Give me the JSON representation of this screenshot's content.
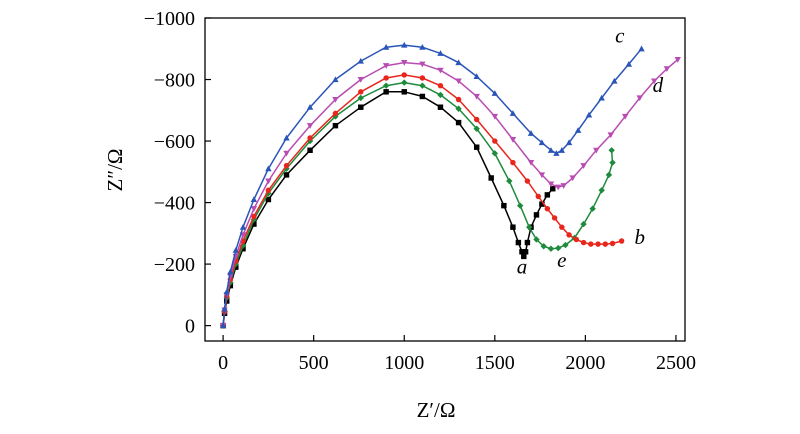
{
  "chart_data": {
    "type": "line",
    "title": "",
    "xlabel": "Z′/Ω",
    "ylabel": "Z″/Ω",
    "xlim": [
      -100,
      2550
    ],
    "ylim": [
      50,
      -1000
    ],
    "xticks": [
      0,
      500,
      1000,
      1500,
      2000,
      2500
    ],
    "yticks": [
      0,
      -200,
      -400,
      -600,
      -800,
      -1000
    ],
    "xtick_labels": [
      "0",
      "500",
      "1000",
      "1500",
      "2000",
      "2500"
    ],
    "ytick_labels": [
      "0",
      "−200",
      "−400",
      "−600",
      "−800",
      "−1000"
    ],
    "grid": false,
    "series": [
      {
        "name": "a",
        "color": "#000000",
        "marker": "square",
        "x": [
          0,
          8,
          20,
          40,
          70,
          110,
          170,
          250,
          350,
          480,
          620,
          760,
          900,
          1000,
          1100,
          1200,
          1300,
          1400,
          1480,
          1550,
          1600,
          1630,
          1650,
          1660,
          1670,
          1680,
          1700,
          1730,
          1760,
          1790,
          1820
        ],
        "y": [
          0,
          -40,
          -80,
          -130,
          -190,
          -250,
          -330,
          -410,
          -490,
          -570,
          -650,
          -710,
          -760,
          -760,
          -745,
          -710,
          -660,
          -580,
          -480,
          -390,
          -320,
          -270,
          -240,
          -225,
          -240,
          -270,
          -320,
          -360,
          -395,
          -425,
          -445
        ]
      },
      {
        "name": "e",
        "color": "#1e8a3c",
        "marker": "diamond",
        "x": [
          0,
          8,
          20,
          40,
          70,
          110,
          170,
          250,
          350,
          480,
          620,
          760,
          900,
          1000,
          1100,
          1200,
          1300,
          1400,
          1500,
          1580,
          1640,
          1690,
          1730,
          1770,
          1810,
          1850,
          1890,
          1940,
          1990,
          2040,
          2090,
          2130,
          2150,
          2145
        ],
        "y": [
          0,
          -45,
          -90,
          -140,
          -200,
          -260,
          -345,
          -430,
          -510,
          -600,
          -680,
          -740,
          -780,
          -790,
          -780,
          -750,
          -705,
          -640,
          -560,
          -470,
          -390,
          -320,
          -280,
          -258,
          -250,
          -252,
          -262,
          -285,
          -330,
          -380,
          -440,
          -490,
          -530,
          -570
        ]
      },
      {
        "name": "b",
        "color": "#e8261c",
        "marker": "circle",
        "x": [
          0,
          8,
          20,
          40,
          70,
          110,
          170,
          250,
          350,
          480,
          620,
          760,
          900,
          1000,
          1100,
          1200,
          1300,
          1400,
          1500,
          1600,
          1680,
          1740,
          1790,
          1830,
          1870,
          1910,
          1950,
          1990,
          2030,
          2070,
          2110,
          2150,
          2200
        ],
        "y": [
          0,
          -45,
          -95,
          -150,
          -210,
          -275,
          -355,
          -440,
          -520,
          -610,
          -690,
          -760,
          -805,
          -815,
          -805,
          -780,
          -735,
          -670,
          -600,
          -530,
          -470,
          -420,
          -380,
          -350,
          -320,
          -295,
          -280,
          -270,
          -265,
          -265,
          -265,
          -267,
          -275
        ]
      },
      {
        "name": "d",
        "color": "#b84cb2",
        "marker": "triangle-down",
        "x": [
          0,
          8,
          20,
          40,
          70,
          110,
          170,
          250,
          350,
          480,
          620,
          760,
          900,
          1000,
          1100,
          1200,
          1300,
          1400,
          1500,
          1600,
          1700,
          1760,
          1810,
          1850,
          1880,
          1930,
          1990,
          2060,
          2140,
          2220,
          2300,
          2380,
          2450,
          2510
        ],
        "y": [
          0,
          -50,
          -100,
          -160,
          -225,
          -295,
          -380,
          -470,
          -560,
          -650,
          -735,
          -800,
          -845,
          -855,
          -850,
          -830,
          -795,
          -745,
          -680,
          -605,
          -530,
          -490,
          -460,
          -450,
          -455,
          -480,
          -520,
          -570,
          -620,
          -680,
          -740,
          -795,
          -835,
          -865
        ]
      },
      {
        "name": "c",
        "color": "#2a55b8",
        "marker": "triangle-up",
        "x": [
          0,
          8,
          20,
          40,
          70,
          110,
          170,
          250,
          350,
          480,
          620,
          760,
          900,
          1000,
          1100,
          1200,
          1300,
          1400,
          1500,
          1600,
          1700,
          1760,
          1810,
          1840,
          1870,
          1910,
          1960,
          2020,
          2090,
          2160,
          2240,
          2310
        ],
        "y": [
          0,
          -55,
          -110,
          -175,
          -245,
          -320,
          -410,
          -510,
          -610,
          -710,
          -800,
          -860,
          -905,
          -912,
          -905,
          -885,
          -855,
          -810,
          -755,
          -690,
          -625,
          -595,
          -570,
          -560,
          -570,
          -595,
          -635,
          -685,
          -740,
          -795,
          -850,
          -900
        ]
      }
    ],
    "annotations": [
      {
        "text": "a",
        "x": 1650,
        "y": -170
      },
      {
        "text": "e",
        "x": 1870,
        "y": -190
      },
      {
        "text": "b",
        "x": 2300,
        "y": -265
      },
      {
        "text": "d",
        "x": 2400,
        "y": -760
      },
      {
        "text": "c",
        "x": 2190,
        "y": -920
      }
    ]
  }
}
